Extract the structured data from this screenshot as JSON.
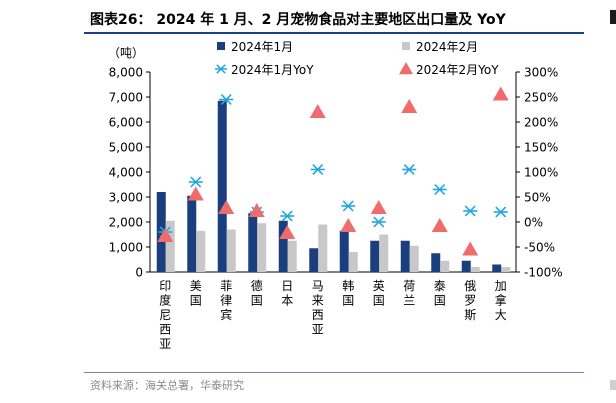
{
  "title": "图表26：  2024 年 1 月、2 月宠物食品对主要地区出口量及 YoY",
  "source": "资料来源：海关总署，华泰研究",
  "chart_data": {
    "type": "bar",
    "unit_label": "（吨）",
    "categories": [
      "印度尼西亚",
      "美国",
      "菲律宾",
      "德国",
      "日本",
      "马来西亚",
      "韩国",
      "英国",
      "荷兰",
      "泰国",
      "俄罗斯",
      "加拿大"
    ],
    "series": [
      {
        "name": "2024年1月",
        "type": "bar",
        "axis": "left",
        "color": "#1b3f7e",
        "values": [
          3200,
          3050,
          6850,
          2350,
          2050,
          950,
          1650,
          1250,
          1250,
          750,
          450,
          300
        ]
      },
      {
        "name": "2024年2月",
        "type": "bar",
        "axis": "left",
        "color": "#c8c8c8",
        "values": [
          2050,
          1650,
          1700,
          1950,
          1250,
          1900,
          800,
          1500,
          1050,
          450,
          200,
          200
        ]
      },
      {
        "name": "2024年1月YoY",
        "type": "scatter",
        "marker": "asterisk",
        "axis": "right",
        "color": "#22a8e0",
        "values": [
          -20,
          80,
          245,
          20,
          12,
          105,
          32,
          0,
          105,
          65,
          22,
          20
        ]
      },
      {
        "name": "2024年2月YoY",
        "type": "scatter",
        "marker": "triangle",
        "axis": "right",
        "color": "#f06b6b",
        "values": [
          -28,
          55,
          28,
          22,
          -22,
          220,
          -8,
          28,
          230,
          -8,
          -55,
          255
        ]
      }
    ],
    "y_left": {
      "min": 0,
      "max": 8000,
      "ticks": [
        "0",
        "1,000",
        "2,000",
        "3,000",
        "4,000",
        "5,000",
        "6,000",
        "7,000",
        "8,000"
      ]
    },
    "y_right": {
      "min": -100,
      "max": 300,
      "ticks": [
        "-100%",
        "-50%",
        "0%",
        "50%",
        "100%",
        "150%",
        "200%",
        "250%",
        "300%"
      ]
    },
    "legend_position": "top",
    "grid": false
  }
}
